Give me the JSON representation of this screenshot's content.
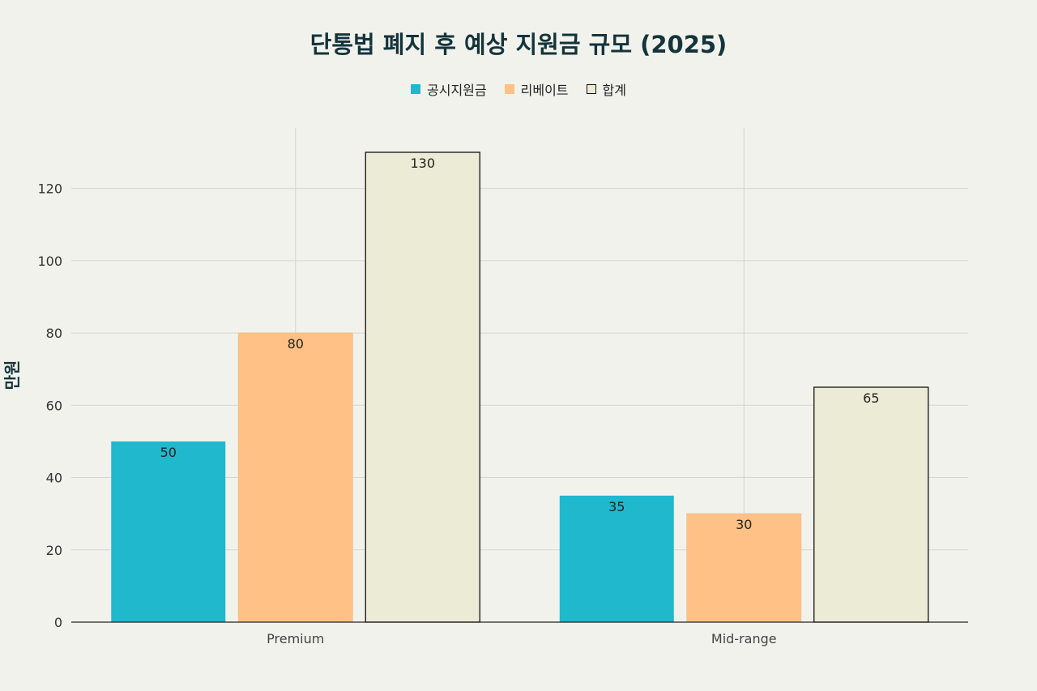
{
  "chart_data": {
    "type": "bar",
    "title": "단통법 폐지 후 예상 지원금 규모 (2025)",
    "xlabel": "",
    "ylabel": "만원",
    "categories": [
      "Premium",
      "Mid-range"
    ],
    "series": [
      {
        "name": "공시지원금",
        "values": [
          50,
          35
        ],
        "color": "#1fb8cd"
      },
      {
        "name": "리베이트",
        "values": [
          80,
          30
        ],
        "color": "#ffc185"
      },
      {
        "name": "합계",
        "values": [
          130,
          65
        ],
        "color": "#ecebd5"
      }
    ],
    "ylim": [
      0,
      130
    ],
    "yticks": [
      0,
      20,
      40,
      60,
      80,
      100,
      120
    ],
    "grid": true,
    "legend_position": "top-center"
  }
}
